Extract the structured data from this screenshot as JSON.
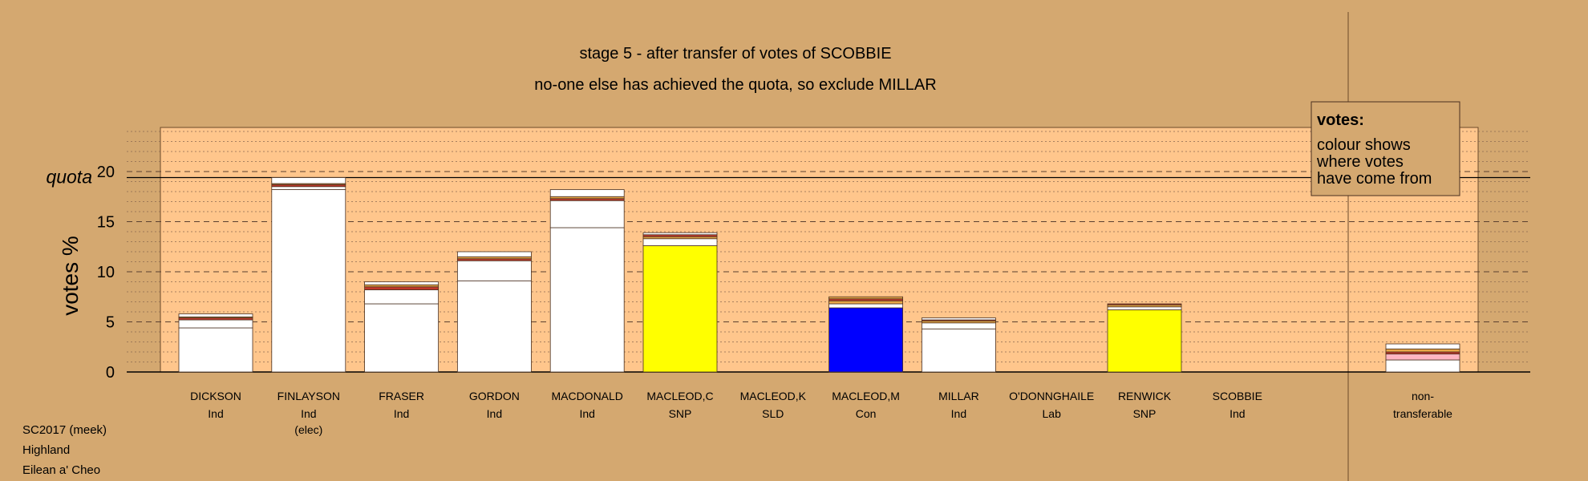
{
  "chart_data": {
    "type": "bar",
    "title": "stage 5 - after transfer of votes of SCOBBIE",
    "subtitle": "no-one else has achieved the quota, so exclude MILLAR",
    "ylabel": "votes %",
    "quota_label": "quota",
    "quota_value": 19.4,
    "ylim": [
      0,
      24.5
    ],
    "yticks": [
      0,
      5,
      10,
      15,
      20
    ],
    "grid": true,
    "legend": {
      "title": "votes:",
      "lines": [
        "colour shows",
        "where votes",
        "have come from"
      ],
      "placement": "top-right"
    },
    "candidates": [
      {
        "name": "DICKSON",
        "party": "Ind",
        "note": "",
        "segments": [
          {
            "v": 4.4,
            "c": "#ffffff"
          },
          {
            "v": 0.8,
            "c": "#ffffff"
          },
          {
            "v": 0.2,
            "c": "#c0392b"
          },
          {
            "v": 0.1,
            "c": "#e8a848"
          },
          {
            "v": 0.3,
            "c": "#ffffff"
          }
        ]
      },
      {
        "name": "FINLAYSON",
        "party": "Ind",
        "note": "(elec)",
        "segments": [
          {
            "v": 18.2,
            "c": "#ffffff"
          },
          {
            "v": 0.3,
            "c": "#ffffff"
          },
          {
            "v": 0.2,
            "c": "#c0392b"
          },
          {
            "v": 0.1,
            "c": "#e8a848"
          },
          {
            "v": 0.6,
            "c": "#ffffff"
          }
        ]
      },
      {
        "name": "FRASER",
        "party": "Ind",
        "note": "",
        "segments": [
          {
            "v": 6.8,
            "c": "#ffffff"
          },
          {
            "v": 1.4,
            "c": "#ffffff"
          },
          {
            "v": 0.3,
            "c": "#c0392b"
          },
          {
            "v": 0.2,
            "c": "#e8a848"
          },
          {
            "v": 0.3,
            "c": "#ffffff"
          }
        ]
      },
      {
        "name": "GORDON",
        "party": "Ind",
        "note": "",
        "segments": [
          {
            "v": 9.1,
            "c": "#ffffff"
          },
          {
            "v": 2.0,
            "c": "#ffffff"
          },
          {
            "v": 0.2,
            "c": "#c0392b"
          },
          {
            "v": 0.2,
            "c": "#e8a848"
          },
          {
            "v": 0.5,
            "c": "#ffffff"
          }
        ]
      },
      {
        "name": "MACDONALD",
        "party": "Ind",
        "note": "",
        "segments": [
          {
            "v": 14.4,
            "c": "#ffffff"
          },
          {
            "v": 2.7,
            "c": "#ffffff"
          },
          {
            "v": 0.2,
            "c": "#c0392b"
          },
          {
            "v": 0.2,
            "c": "#e8a848"
          },
          {
            "v": 0.7,
            "c": "#ffffff"
          }
        ]
      },
      {
        "name": "MACLEOD,C",
        "party": "SNP",
        "note": "",
        "segments": [
          {
            "v": 12.6,
            "c": "#ffff00"
          },
          {
            "v": 0.7,
            "c": "#ffffff"
          },
          {
            "v": 0.2,
            "c": "#e8a848"
          },
          {
            "v": 0.2,
            "c": "#c0392b"
          },
          {
            "v": 0.2,
            "c": "#ffffff"
          }
        ]
      },
      {
        "name": "MACLEOD,K",
        "party": "SLD",
        "note": "",
        "segments": []
      },
      {
        "name": "MACLEOD,M",
        "party": "Con",
        "note": "",
        "segments": [
          {
            "v": 6.4,
            "c": "#0000ff"
          },
          {
            "v": 0.4,
            "c": "#ffffff"
          },
          {
            "v": 0.3,
            "c": "#e8a848"
          },
          {
            "v": 0.2,
            "c": "#c0392b"
          },
          {
            "v": 0.2,
            "c": "#e8a848"
          }
        ]
      },
      {
        "name": "MILLAR",
        "party": "Ind",
        "note": "",
        "segments": [
          {
            "v": 4.3,
            "c": "#ffffff"
          },
          {
            "v": 0.6,
            "c": "#ffffff"
          },
          {
            "v": 0.2,
            "c": "#e8a848"
          },
          {
            "v": 0.1,
            "c": "#c0392b"
          },
          {
            "v": 0.2,
            "c": "#ffffff"
          }
        ]
      },
      {
        "name": "O'DONNGHAILE",
        "party": "Lab",
        "note": "",
        "segments": []
      },
      {
        "name": "RENWICK",
        "party": "SNP",
        "note": "",
        "segments": [
          {
            "v": 6.2,
            "c": "#ffff00"
          },
          {
            "v": 0.3,
            "c": "#ffffff"
          },
          {
            "v": 0.2,
            "c": "#e8a848"
          },
          {
            "v": 0.1,
            "c": "#c0392b"
          }
        ]
      },
      {
        "name": "SCOBBIE",
        "party": "Ind",
        "note": "",
        "segments": []
      }
    ],
    "nontransferable": {
      "label_line1": "non-",
      "label_line2": "transferable",
      "segments": [
        {
          "v": 1.2,
          "c": "#ffffff"
        },
        {
          "v": 0.6,
          "c": "#ffb6c1"
        },
        {
          "v": 0.2,
          "c": "#c0392b"
        },
        {
          "v": 0.3,
          "c": "#e8a848"
        },
        {
          "v": 0.5,
          "c": "#ffffff"
        }
      ]
    }
  },
  "footer": {
    "line1": "SC2017 (meek)",
    "line2": "Highland",
    "line3": "Eilean a' Cheo"
  }
}
